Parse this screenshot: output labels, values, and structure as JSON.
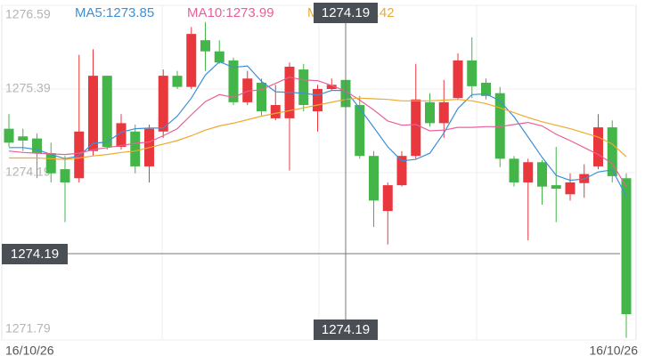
{
  "chart_data": {
    "type": "candlestick",
    "ylim": [
      1271.79,
      1276.59
    ],
    "yticks": [
      1276.59,
      1275.39,
      1274.19,
      1271.79
    ],
    "grid": true,
    "up_color": "#e8383d",
    "down_color": "#44b649",
    "x_labels": [
      "16/10/26",
      "16/10/26"
    ],
    "candles": {
      "open": [
        1274.82,
        1274.71,
        1274.68,
        1274.47,
        1274.24,
        1274.11,
        1274.5,
        1275.58,
        1274.56,
        1274.78,
        1274.28,
        1274.78,
        1275.58,
        1275.42,
        1276.09,
        1275.93,
        1275.8,
        1275.2,
        1275.48,
        1274.97,
        1274.97,
        1275.67,
        1275.07,
        1275.39,
        1275.52,
        1275.16,
        1274.43,
        1273.64,
        1274.01,
        1274.43,
        1275.2,
        1274.9,
        1275.26,
        1275.8,
        1275.48,
        1275.33,
        1274.39,
        1274.05,
        1274.34,
        1274.01,
        1273.88,
        1274.04,
        1274.28,
        1274.84,
        1274.11
      ],
      "high": [
        1275.03,
        1274.82,
        1274.75,
        1274.62,
        1274.43,
        1275.88,
        1275.96,
        1275.58,
        1275.03,
        1274.88,
        1274.88,
        1275.67,
        1275.65,
        1276.28,
        1276.35,
        1276.09,
        1275.84,
        1275.65,
        1275.54,
        1275.45,
        1275.77,
        1275.75,
        1275.45,
        1275.54,
        1275.67,
        1275.29,
        1274.5,
        1274.05,
        1274.5,
        1275.75,
        1275.33,
        1275.52,
        1275.9,
        1276.13,
        1275.54,
        1275.42,
        1274.43,
        1274.39,
        1274.37,
        1274.56,
        1274.18,
        1274.31,
        1275.03,
        1274.94,
        1274.18
      ],
      "low": [
        1274.56,
        1274.5,
        1274.11,
        1274.05,
        1273.48,
        1274.05,
        1274.43,
        1274.52,
        1274.52,
        1274.18,
        1274.05,
        1274.69,
        1275.39,
        1275.39,
        1275.65,
        1275.75,
        1275.16,
        1275.16,
        1275.01,
        1274.94,
        1274.22,
        1275.07,
        1274.78,
        1275.36,
        1275.07,
        1274.39,
        1273.41,
        1273.16,
        1273.99,
        1274.39,
        1274.85,
        1274.69,
        1275.24,
        1275.26,
        1275.24,
        1274.27,
        1273.99,
        1273.22,
        1273.73,
        1273.48,
        1273.79,
        1273.83,
        1274.24,
        1274.05,
        1271.82
      ],
      "close": [
        1274.62,
        1274.65,
        1274.47,
        1274.18,
        1274.05,
        1274.78,
        1275.58,
        1274.56,
        1274.9,
        1274.28,
        1274.82,
        1275.58,
        1275.42,
        1276.18,
        1275.93,
        1275.77,
        1275.2,
        1275.54,
        1275.07,
        1275.16,
        1275.71,
        1275.16,
        1275.39,
        1275.45,
        1275.13,
        1274.43,
        1273.79,
        1274.01,
        1274.43,
        1275.24,
        1274.9,
        1275.2,
        1275.8,
        1275.43,
        1275.29,
        1274.39,
        1274.05,
        1274.34,
        1273.99,
        1273.96,
        1274.05,
        1274.17,
        1274.84,
        1274.14,
        1272.16
      ]
    },
    "series": [
      {
        "name": "MA5:1273.85",
        "color": "#3f8fd6",
        "values": [
          1274.55,
          1274.55,
          1274.52,
          1274.45,
          1274.39,
          1274.43,
          1274.61,
          1274.63,
          1274.77,
          1274.82,
          1274.83,
          1274.83,
          1275.0,
          1275.26,
          1275.59,
          1275.78,
          1275.7,
          1275.72,
          1275.5,
          1275.35,
          1275.34,
          1275.33,
          1275.3,
          1275.37,
          1275.37,
          1275.11,
          1274.84,
          1274.56,
          1274.36,
          1274.38,
          1274.47,
          1274.76,
          1275.11,
          1275.31,
          1275.32,
          1275.22,
          1274.99,
          1274.7,
          1274.41,
          1274.15,
          1274.08,
          1274.1,
          1274.2,
          1274.23,
          1273.85
        ]
      },
      {
        "name": "MA10:1273.99",
        "color": "#e8609a",
        "values": [
          1274.5,
          1274.48,
          1274.47,
          1274.46,
          1274.45,
          1274.47,
          1274.52,
          1274.55,
          1274.58,
          1274.61,
          1274.63,
          1274.72,
          1274.82,
          1275.02,
          1275.21,
          1275.31,
          1275.27,
          1275.36,
          1275.38,
          1275.47,
          1275.56,
          1275.52,
          1275.51,
          1275.44,
          1275.36,
          1275.23,
          1275.09,
          1274.93,
          1274.87,
          1274.88,
          1274.79,
          1274.8,
          1274.84,
          1274.84,
          1274.85,
          1274.85,
          1274.88,
          1274.91,
          1274.86,
          1274.74,
          1274.65,
          1274.55,
          1274.45,
          1274.32,
          1273.99
        ]
      },
      {
        "name": "MA20:1274.42",
        "color": "#f0a92e",
        "values": [
          1274.4,
          1274.4,
          1274.4,
          1274.39,
          1274.38,
          1274.4,
          1274.43,
          1274.45,
          1274.48,
          1274.5,
          1274.55,
          1274.6,
          1274.65,
          1274.72,
          1274.8,
          1274.86,
          1274.9,
          1274.95,
          1275.0,
          1275.04,
          1275.08,
          1275.12,
          1275.16,
          1275.2,
          1275.24,
          1275.26,
          1275.25,
          1275.24,
          1275.22,
          1275.22,
          1275.22,
          1275.23,
          1275.24,
          1275.22,
          1275.18,
          1275.12,
          1275.05,
          1274.98,
          1274.92,
          1274.87,
          1274.82,
          1274.76,
          1274.7,
          1274.6,
          1274.42
        ]
      }
    ],
    "crosshair": {
      "top_label": "1274.19",
      "y_label": "1274.19",
      "x_label": "1274.19"
    }
  }
}
